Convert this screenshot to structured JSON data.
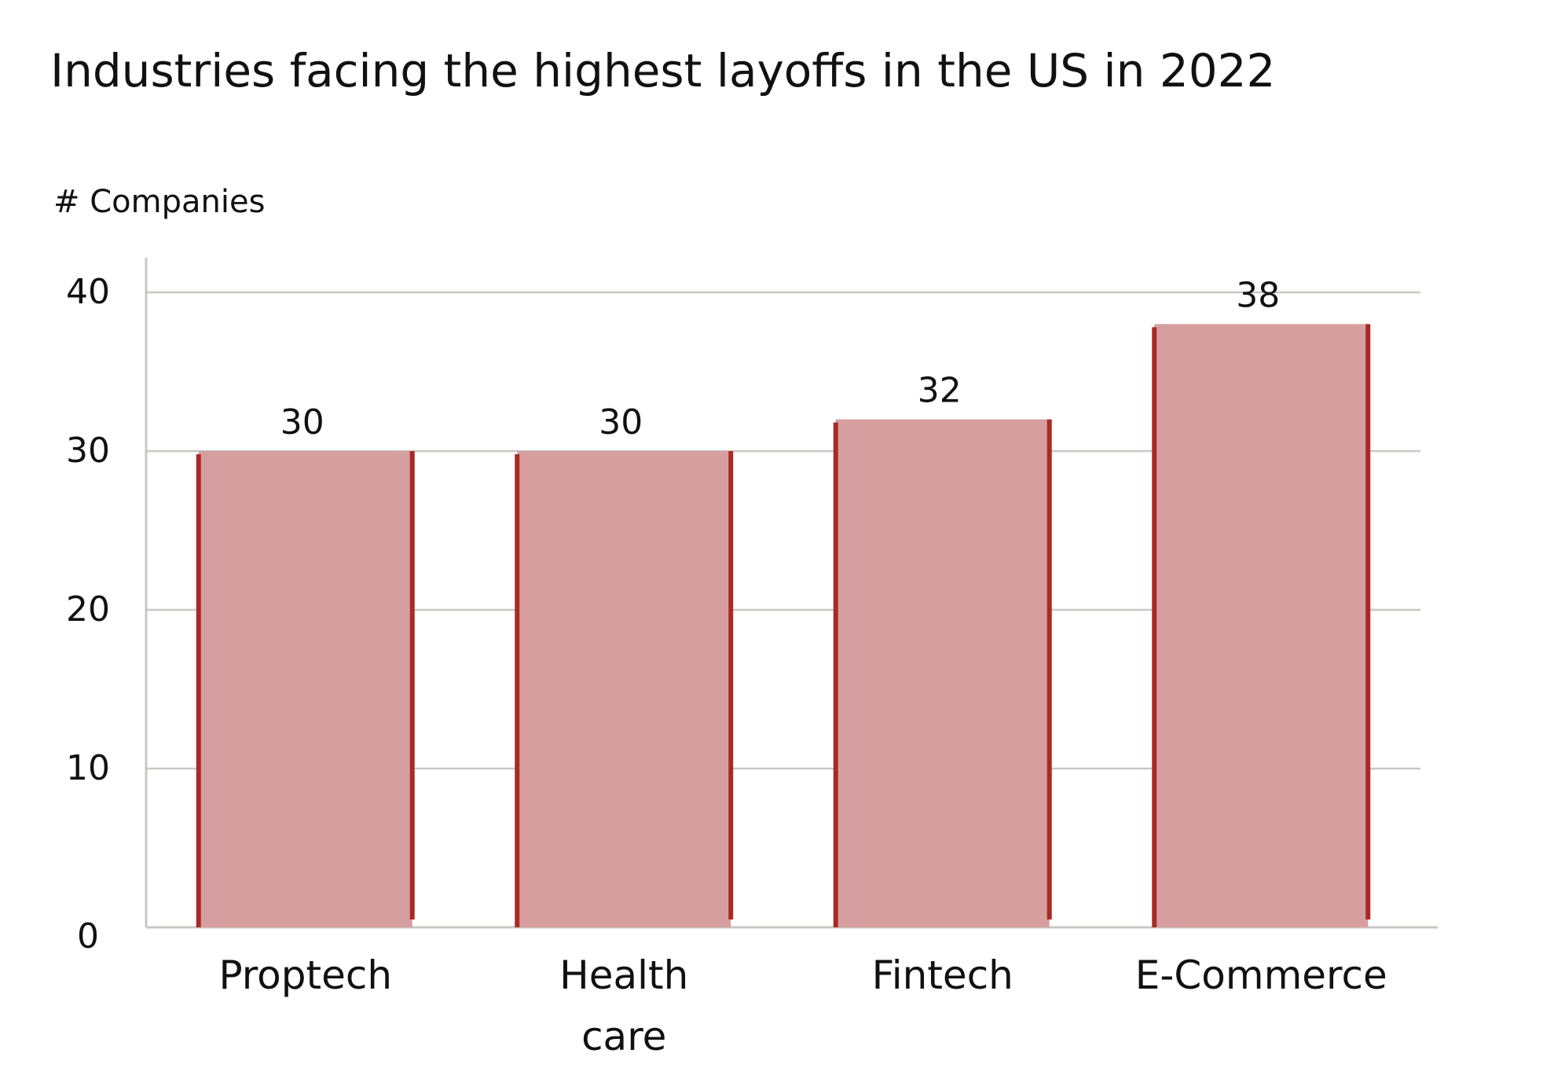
{
  "chart_data": {
    "type": "bar",
    "title": "Industries facing the highest layoffs in the US in 2022",
    "ylabel": "# Companies",
    "xlabel": "",
    "categories": [
      "Proptech",
      "Health care",
      "Fintech",
      "E-Commerce"
    ],
    "category_lines": [
      [
        "Proptech"
      ],
      [
        "Health",
        "care"
      ],
      [
        "Fintech"
      ],
      [
        "E-Commerce"
      ]
    ],
    "values": [
      30,
      30,
      32,
      38
    ],
    "data_labels": [
      "30",
      "30",
      "32",
      "38"
    ],
    "ylim": [
      0,
      40
    ],
    "yticks": [
      0,
      10,
      20,
      30,
      40
    ],
    "ytick_labels": [
      "0",
      "10",
      "20",
      "30",
      "40"
    ],
    "grid": true,
    "legend": "none",
    "colors": {
      "bar_fill": "#d69e9e",
      "bar_edge": "#a82a25",
      "grid": "#c8c8c4",
      "axis": "#c8c8c4",
      "text": "#111111"
    }
  }
}
